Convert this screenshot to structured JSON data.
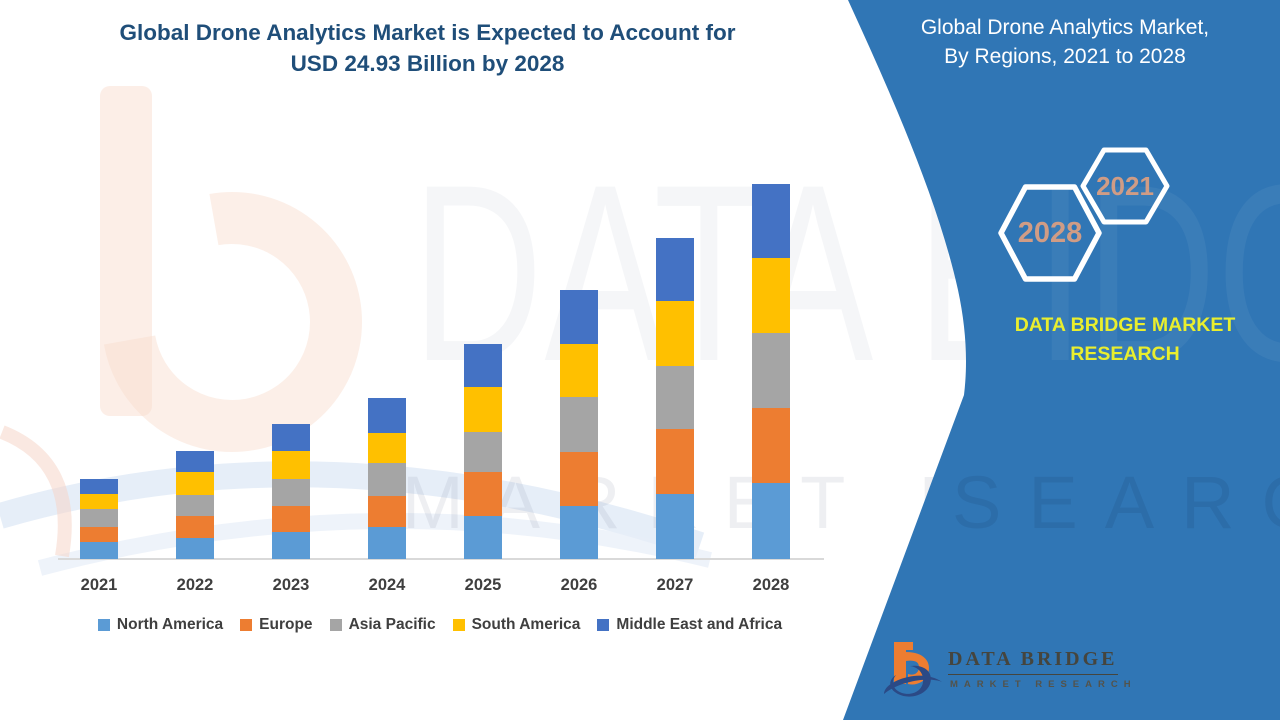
{
  "left_panel": {
    "title_line1": "Global Drone Analytics Market is Expected to Account for",
    "title_line2": "USD 24.93 Billion by 2028"
  },
  "right_panel": {
    "title_line1": "Global Drone Analytics Market,",
    "title_line2": "By Regions, 2021 to 2028",
    "hexagon_years": {
      "front": "2021",
      "back": "2028"
    },
    "brand_text": "DATA BRIDGE MARKET RESEARCH",
    "background_color": "#3076B5",
    "hexagon_year_color": "#D09C85",
    "brand_text_color": "#E9EE2E"
  },
  "logo": {
    "name": "DATA BRIDGE",
    "subtitle": "MARKET RESEARCH",
    "orange": "#ED7D31",
    "navy": "#2B4A86"
  },
  "watermarks": {
    "big_text_white_area": "DATA BRI",
    "big_text_panel_fragment": "IDGE",
    "market_research_white_area": "MARKET RE",
    "market_research_panel_fragment": "SEARCH"
  },
  "chart_data": {
    "type": "bar",
    "stacked": true,
    "title": "Global Drone Analytics Market is Expected to Account for USD 24.93 Billion by 2028",
    "value_unit": "USD Billion",
    "labeled_value": {
      "year": "2028",
      "total": 24.93
    },
    "categories": [
      "2021",
      "2022",
      "2023",
      "2024",
      "2025",
      "2026",
      "2027",
      "2028"
    ],
    "series": [
      {
        "name": "North America",
        "color": "#5B9BD5",
        "values": [
          1.1,
          1.42,
          1.77,
          2.1,
          2.84,
          3.54,
          4.34,
          5.05
        ]
      },
      {
        "name": "Europe",
        "color": "#ED7D31",
        "values": [
          1.06,
          1.42,
          1.78,
          2.09,
          2.97,
          3.59,
          4.3,
          5.01
        ]
      },
      {
        "name": "Asia Pacific",
        "color": "#A5A5A5",
        "values": [
          1.16,
          1.42,
          1.78,
          2.17,
          2.66,
          3.64,
          4.21,
          4.97
        ]
      },
      {
        "name": "South America",
        "color": "#FFC000",
        "values": [
          1.02,
          1.55,
          1.86,
          2.0,
          2.97,
          3.5,
          4.3,
          5.01
        ]
      },
      {
        "name": "Middle East and Africa",
        "color": "#4472C4",
        "values": [
          0.98,
          1.38,
          1.77,
          2.35,
          2.84,
          3.59,
          4.21,
          4.89
        ]
      }
    ],
    "estimated_totals": [
      5.32,
      7.19,
      8.96,
      10.71,
      14.28,
      17.86,
      21.36,
      24.93
    ],
    "ylim": [
      0,
      25
    ],
    "grid": false,
    "legend_position": "bottom",
    "axis_line_color": "#D9D9D9",
    "tick_label_color": "#3F3F3F"
  }
}
